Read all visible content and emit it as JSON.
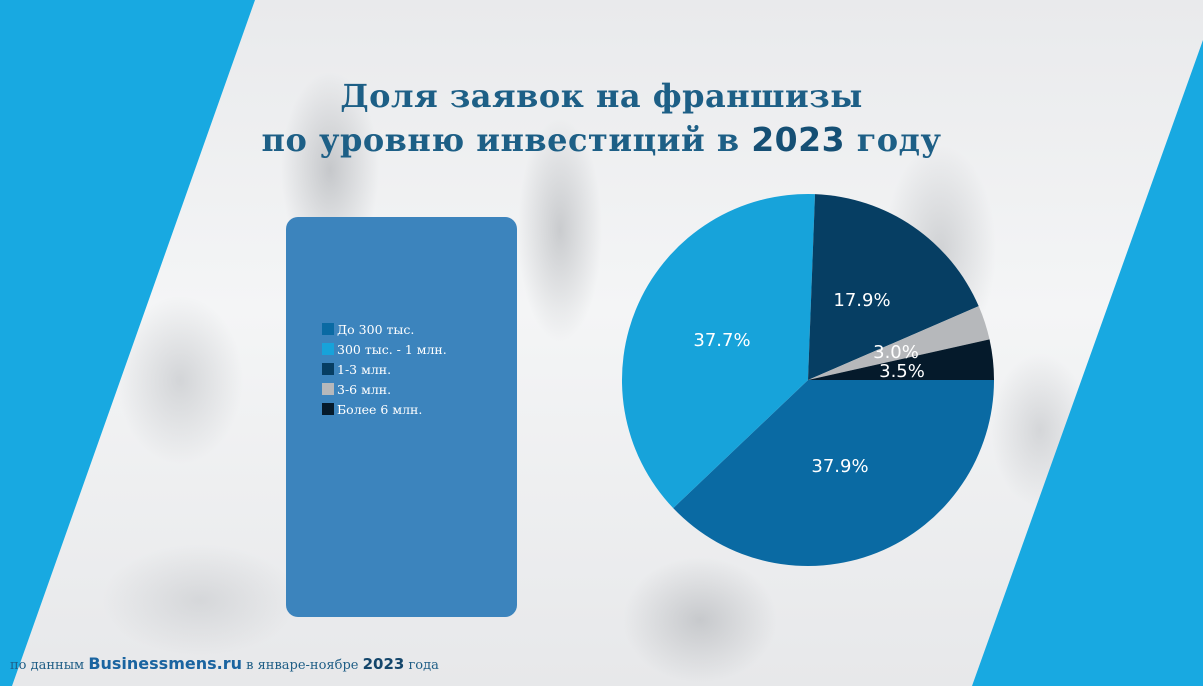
{
  "colors": {
    "accent_cyan": "#18a9e1",
    "title": "#1d5f86",
    "legend_panel": "#3c84bd"
  },
  "title": {
    "line1": "Доля заявок на франшизы",
    "line2_prefix": "по уровню инвестиций в",
    "line2_year": "2023",
    "line2_suffix": "году"
  },
  "footer": {
    "prefix": "по данным",
    "brand": "Businessmens.ru",
    "middle": "в январе-ноябре",
    "year": "2023",
    "suffix": "года"
  },
  "chart_data": {
    "type": "pie",
    "legend_position": "left",
    "start_angle_deg": 0,
    "direction": "clockwise",
    "slices": [
      {
        "label": "До 300 тыс.",
        "value": 37.9,
        "value_label": "37.9%",
        "color": "#0a6aa3"
      },
      {
        "label": "300 тыс. - 1 млн.",
        "value": 37.7,
        "value_label": "37.7%",
        "color": "#17a3da"
      },
      {
        "label": "1-3 млн.",
        "value": 17.9,
        "value_label": "17.9%",
        "color": "#063e63"
      },
      {
        "label": "3-6 млн.",
        "value": 3.0,
        "value_label": "3.0%",
        "color": "#b6b8bb"
      },
      {
        "label": "Более 6 млн.",
        "value": 3.5,
        "value_label": "3.5%",
        "color": "#051a2b"
      }
    ]
  }
}
